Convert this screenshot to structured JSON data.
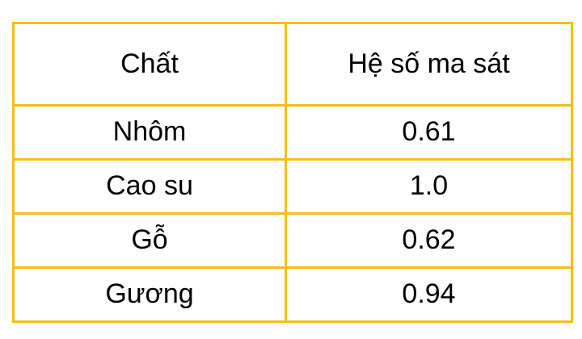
{
  "table": {
    "headers": [
      "Chất",
      "Hệ số ma sát"
    ],
    "rows": [
      [
        "Nhôm",
        "0.61"
      ],
      [
        "Cao su",
        "1.0"
      ],
      [
        "Gỗ",
        "0.62"
      ],
      [
        "Gương",
        "0.94"
      ]
    ]
  },
  "colors": {
    "border": "#F4BE1B",
    "text": "#000000",
    "background": "#FFFFFF"
  }
}
